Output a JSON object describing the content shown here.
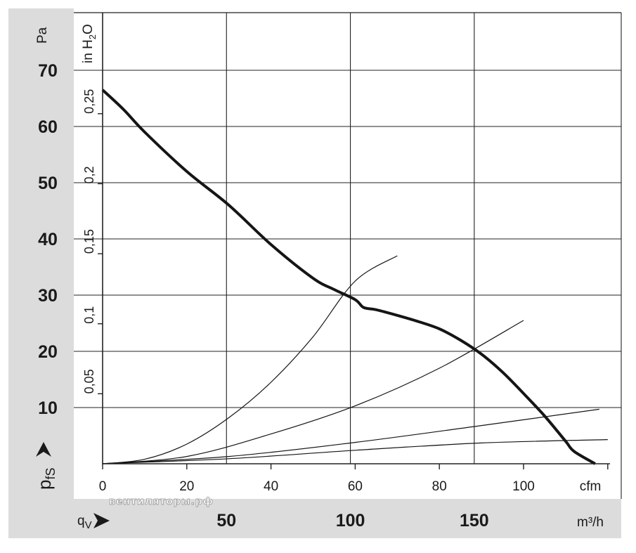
{
  "chart_data": {
    "type": "line",
    "title": "",
    "x_axis": {
      "unit": "cfm",
      "ticks": [
        0,
        20,
        40,
        60,
        80,
        100
      ],
      "range": [
        0,
        120
      ]
    },
    "x_axis_secondary": {
      "unit": "m³/h",
      "ticks": [
        50,
        100,
        150
      ]
    },
    "y_axis": {
      "unit": "Pa",
      "ticks": [
        10,
        20,
        30,
        40,
        50,
        60,
        70
      ],
      "range": [
        0,
        78
      ]
    },
    "y_axis_secondary": {
      "unit": "in H2O",
      "ticks": [
        "0,05",
        "0,1",
        "0,15",
        "0,2",
        "0,25"
      ],
      "values": [
        0.05,
        0.1,
        0.15,
        0.2,
        0.25
      ]
    },
    "axis_symbols": {
      "pressure": "p",
      "pressure_sub": "fS",
      "flow": "q",
      "flow_sub": "V"
    },
    "grid": true,
    "watermark": "вентиляторы.рф",
    "series": [
      {
        "role": "fan-curve",
        "x": [
          0,
          5,
          10,
          20,
          30,
          40,
          50,
          55,
          60,
          62,
          65,
          70,
          75,
          80,
          85,
          90,
          95,
          100,
          105,
          110,
          112,
          117
        ],
        "y": [
          66.5,
          63,
          59,
          52,
          46,
          39,
          33,
          31,
          29.2,
          27.8,
          27.4,
          26.4,
          25.3,
          24,
          22,
          19.5,
          16.3,
          12.5,
          8.5,
          4,
          2.2,
          0
        ]
      },
      {
        "role": "system-curve",
        "x": [
          0,
          10,
          20,
          30,
          40,
          50,
          60,
          70
        ],
        "y": [
          0,
          0.8,
          3.5,
          8.2,
          14.5,
          22.6,
          32.5,
          37
        ]
      },
      {
        "role": "system-curve",
        "x": [
          0,
          20,
          40,
          60,
          80,
          100
        ],
        "y": [
          0,
          1.3,
          5.3,
          10.3,
          17,
          25.5
        ]
      },
      {
        "role": "system-curve",
        "x": [
          0,
          30,
          60,
          90,
          118
        ],
        "y": [
          0,
          1.3,
          3.8,
          6.8,
          9.7
        ]
      },
      {
        "role": "system-curve",
        "x": [
          0,
          30,
          60,
          90,
          120
        ],
        "y": [
          0,
          0.9,
          2.4,
          3.7,
          4.3
        ]
      }
    ]
  }
}
